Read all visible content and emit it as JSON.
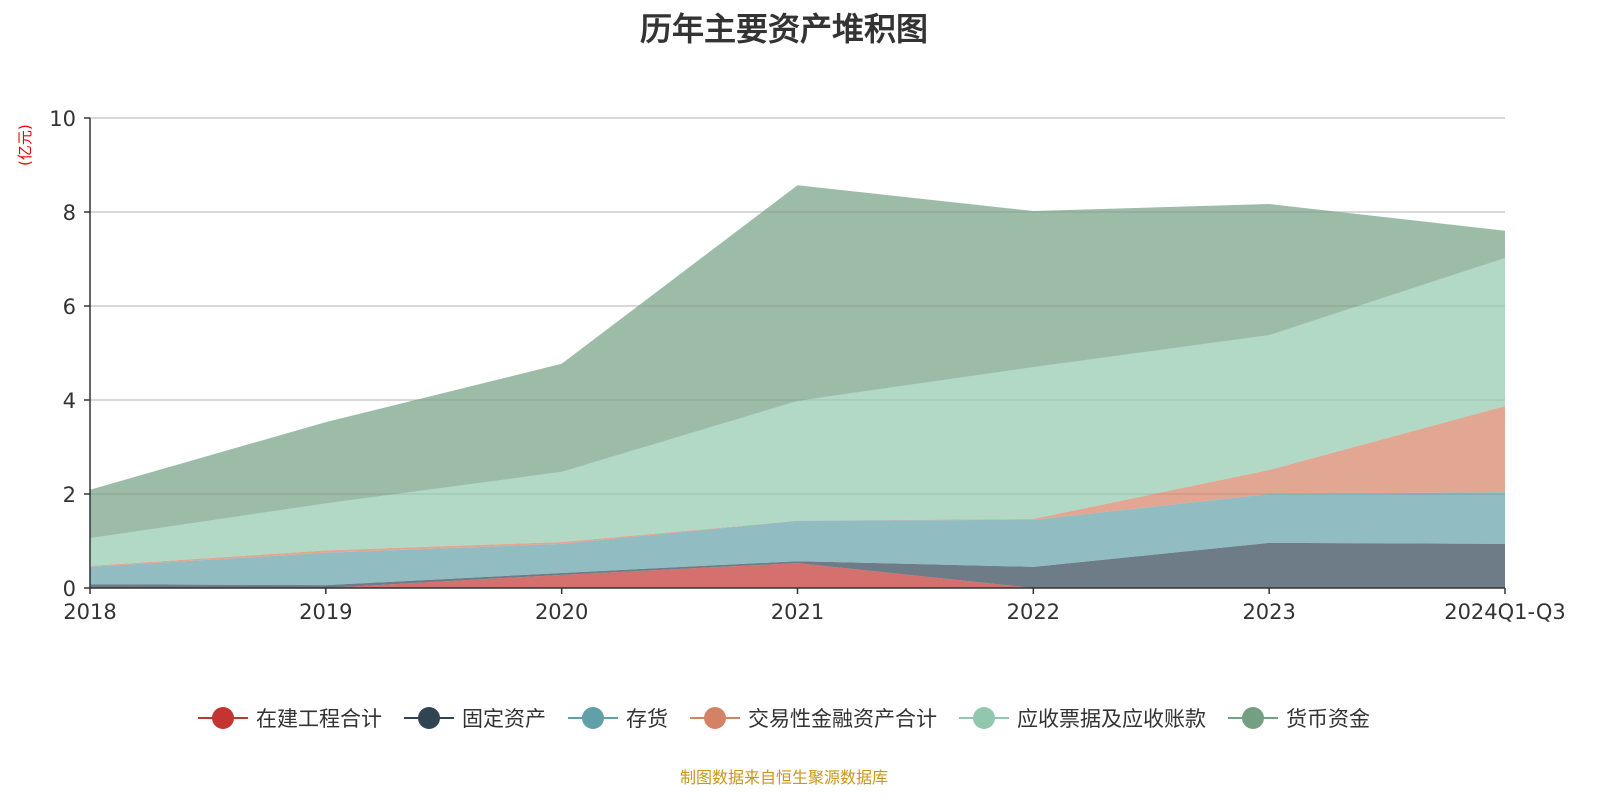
{
  "chart_data": {
    "type": "area",
    "stacked": true,
    "title": "历年主要资产堆积图",
    "ylabel": "(亿元)",
    "xlabel": "",
    "ylim": [
      0,
      10
    ],
    "yticks": [
      "0",
      "2",
      "4",
      "6",
      "8",
      "10"
    ],
    "grid": true,
    "legend_position": "bottom",
    "categories": [
      "2018",
      "2019",
      "2020",
      "2021",
      "2022",
      "2023",
      "2024Q1-Q3"
    ],
    "series": [
      {
        "name": "在建工程合计",
        "color": "#c23531",
        "values": [
          0,
          0,
          0.28,
          0.53,
          0,
          0,
          0
        ]
      },
      {
        "name": "固定资产",
        "color": "#2f4554",
        "values": [
          0.08,
          0.06,
          0.04,
          0.04,
          0.45,
          0.96,
          0.94
        ]
      },
      {
        "name": "存货",
        "color": "#61a0a8",
        "values": [
          0.37,
          0.69,
          0.62,
          0.86,
          1.0,
          1.04,
          1.1
        ]
      },
      {
        "name": "交易性金融资产合计",
        "color": "#d48265",
        "values": [
          0.02,
          0.05,
          0.04,
          0,
          0.02,
          0.51,
          1.83
        ]
      },
      {
        "name": "应收票据及应收账款",
        "color": "#91c7ae",
        "values": [
          0.59,
          1.0,
          1.49,
          2.55,
          3.23,
          2.87,
          3.15
        ]
      },
      {
        "name": "货币资金",
        "color": "#749f83",
        "values": [
          1.03,
          1.73,
          2.3,
          4.59,
          3.32,
          2.79,
          0.58
        ]
      }
    ]
  },
  "source": "制图数据来自恒生聚源数据库"
}
